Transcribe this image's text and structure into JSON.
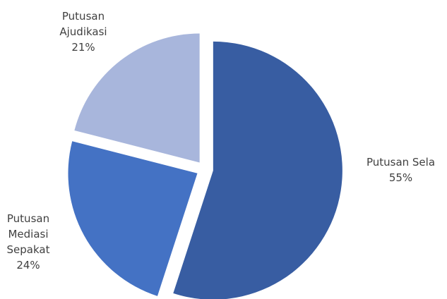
{
  "chart_data": {
    "type": "pie",
    "categories": [
      "Putusan Sela",
      "Putusan Mediasi Sepakat",
      "Putusan Ajudikasi"
    ],
    "values": [
      55,
      24,
      21
    ],
    "value_labels": [
      "55%",
      "24%",
      "21%"
    ],
    "colors": [
      "#385da2",
      "#4472c4",
      "#a8b6dc"
    ]
  }
}
